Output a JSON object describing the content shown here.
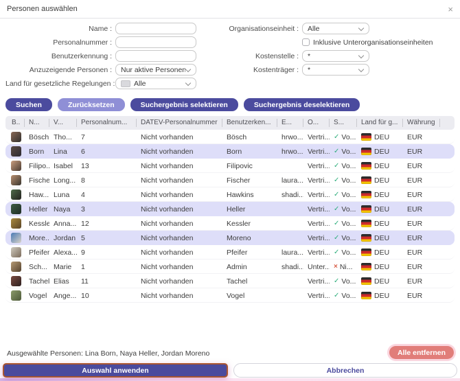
{
  "dialog": {
    "title": "Personen auswählen",
    "close_icon": "×"
  },
  "form": {
    "fields_left": [
      {
        "label": "Name :",
        "control": "text",
        "value": ""
      },
      {
        "label": "Personalnummer :",
        "control": "text",
        "value": ""
      },
      {
        "label": "Benutzerkennung :",
        "control": "text",
        "value": ""
      },
      {
        "label": "Anzuzeigende Personen :",
        "control": "select",
        "value": "Nur aktive Personen"
      },
      {
        "label": "Land für gesetzliche Regelungen :",
        "control": "select-flag",
        "value": "Alle"
      }
    ],
    "fields_right": [
      {
        "label": "Organisationseinheit :",
        "control": "select",
        "value": "Alle"
      },
      {
        "label": "",
        "control": "checkbox",
        "value": "Inklusive Unterorganisationseinheiten",
        "checked": false
      },
      {
        "label": "Kostenstelle :",
        "control": "select",
        "value": "*"
      },
      {
        "label": "Kostenträger :",
        "control": "select",
        "value": "*"
      }
    ]
  },
  "actions": {
    "search": "Suchen",
    "reset": "Zurücksetzen",
    "select_results": "Suchergebnis selektieren",
    "deselect_results": "Suchergebnis deselektieren"
  },
  "table": {
    "columns": [
      "B..",
      "N...",
      "V...",
      "Personalnum...",
      "DATEV-Personalnummer",
      "Benutzerken...",
      "E...",
      "O...",
      "S...",
      "Land für g...",
      "Währung"
    ],
    "rows": [
      {
        "last_name": "Bösch",
        "first_name": "Tho...",
        "personnel_no": "7",
        "datev_no": "Nicht vorhanden",
        "user_id": "Bösch",
        "email": "hrwo...",
        "org": "Vertri...",
        "status_icon": "check",
        "status": "Vo...",
        "country": "DEU",
        "currency": "EUR",
        "selected": false,
        "avatar_colors": [
          "#8a6a55",
          "#32302e"
        ]
      },
      {
        "last_name": "Born",
        "first_name": "Lina",
        "personnel_no": "6",
        "datev_no": "Nicht vorhanden",
        "user_id": "Born",
        "email": "hrwo...",
        "org": "Vertri...",
        "status_icon": "check",
        "status": "Vo...",
        "country": "DEU",
        "currency": "EUR",
        "selected": true,
        "avatar_colors": [
          "#5a4a42",
          "#2e2a33"
        ]
      },
      {
        "last_name": "Filipo...",
        "first_name": "Isabel",
        "personnel_no": "13",
        "datev_no": "Nicht vorhanden",
        "user_id": "Filipovic",
        "email": "",
        "org": "Vertri...",
        "status_icon": "check",
        "status": "Vo...",
        "country": "DEU",
        "currency": "EUR",
        "selected": false,
        "avatar_colors": [
          "#c99d7e",
          "#4a3b32"
        ]
      },
      {
        "last_name": "Fischer",
        "first_name": "Long...",
        "personnel_no": "8",
        "datev_no": "Nicht vorhanden",
        "user_id": "Fischer",
        "email": "laura....",
        "org": "Vertri...",
        "status_icon": "check",
        "status": "Vo...",
        "country": "DEU",
        "currency": "EUR",
        "selected": false,
        "avatar_colors": [
          "#b98f6f",
          "#39352f"
        ]
      },
      {
        "last_name": "Haw...",
        "first_name": "Luna",
        "personnel_no": "4",
        "datev_no": "Nicht vorhanden",
        "user_id": "Hawkins",
        "email": "shadi...",
        "org": "Vertri...",
        "status_icon": "check",
        "status": "Vo...",
        "country": "DEU",
        "currency": "EUR",
        "selected": false,
        "avatar_colors": [
          "#4f6b4a",
          "#24221f"
        ]
      },
      {
        "last_name": "Heller",
        "first_name": "Naya",
        "personnel_no": "3",
        "datev_no": "Nicht vorhanden",
        "user_id": "Heller",
        "email": "",
        "org": "Vertri...",
        "status_icon": "check",
        "status": "Vo...",
        "country": "DEU",
        "currency": "EUR",
        "selected": true,
        "avatar_colors": [
          "#3e5d43",
          "#1f2d26"
        ]
      },
      {
        "last_name": "Kessler",
        "first_name": "Anna...",
        "personnel_no": "12",
        "datev_no": "Nicht vorhanden",
        "user_id": "Kessler",
        "email": "",
        "org": "Vertri...",
        "status_icon": "check",
        "status": "Vo...",
        "country": "DEU",
        "currency": "EUR",
        "selected": false,
        "avatar_colors": [
          "#a98a3f",
          "#5a4426"
        ]
      },
      {
        "last_name": "More...",
        "first_name": "Jordan",
        "personnel_no": "5",
        "datev_no": "Nicht vorhanden",
        "user_id": "Moreno",
        "email": "",
        "org": "Vertri...",
        "status_icon": "check",
        "status": "Vo...",
        "country": "DEU",
        "currency": "EUR",
        "selected": true,
        "avatar_colors": [
          "#4a7ab5",
          "#d9d2c7"
        ]
      },
      {
        "last_name": "Pfeifer",
        "first_name": "Alexa...",
        "personnel_no": "9",
        "datev_no": "Nicht vorhanden",
        "user_id": "Pfeifer",
        "email": "laura....",
        "org": "Vertri...",
        "status_icon": "check",
        "status": "Vo...",
        "country": "DEU",
        "currency": "EUR",
        "selected": false,
        "avatar_colors": [
          "#cfcabe",
          "#7a6a5a"
        ]
      },
      {
        "last_name": "Sch...",
        "first_name": "Marie",
        "personnel_no": "1",
        "datev_no": "Nicht vorhanden",
        "user_id": "Admin",
        "email": "shadi...",
        "org": "Unter...",
        "status_icon": "cross",
        "status": "Ni...",
        "country": "DEU",
        "currency": "EUR",
        "selected": false,
        "avatar_colors": [
          "#b59a74",
          "#54422e"
        ]
      },
      {
        "last_name": "Tachel",
        "first_name": "Elias",
        "personnel_no": "11",
        "datev_no": "Nicht vorhanden",
        "user_id": "Tachel",
        "email": "",
        "org": "Vertri...",
        "status_icon": "check",
        "status": "Vo...",
        "country": "DEU",
        "currency": "EUR",
        "selected": false,
        "avatar_colors": [
          "#7a4a3f",
          "#2e2020"
        ]
      },
      {
        "last_name": "Vogel",
        "first_name": "Ange...",
        "personnel_no": "10",
        "datev_no": "Nicht vorhanden",
        "user_id": "Vogel",
        "email": "",
        "org": "Vertri...",
        "status_icon": "check",
        "status": "Vo...",
        "country": "DEU",
        "currency": "EUR",
        "selected": false,
        "avatar_colors": [
          "#8a9a6a",
          "#4e5a3a"
        ]
      }
    ]
  },
  "footer": {
    "selected_label": "Ausgewählte Personen: Lina Born, Naya Heller, Jordan Moreno",
    "remove_all": "Alle entfernen",
    "apply": "Auswahl anwenden",
    "cancel": "Abbrechen"
  },
  "colors": {
    "primary": "#4b4b9e",
    "primary_light": "#8f8fd6",
    "row_selected": "#dedef9",
    "danger": "#e17d79",
    "check_green": "#2fae7c",
    "cross_red": "#d9604a",
    "apply_highlight_border": "#aa5530"
  }
}
